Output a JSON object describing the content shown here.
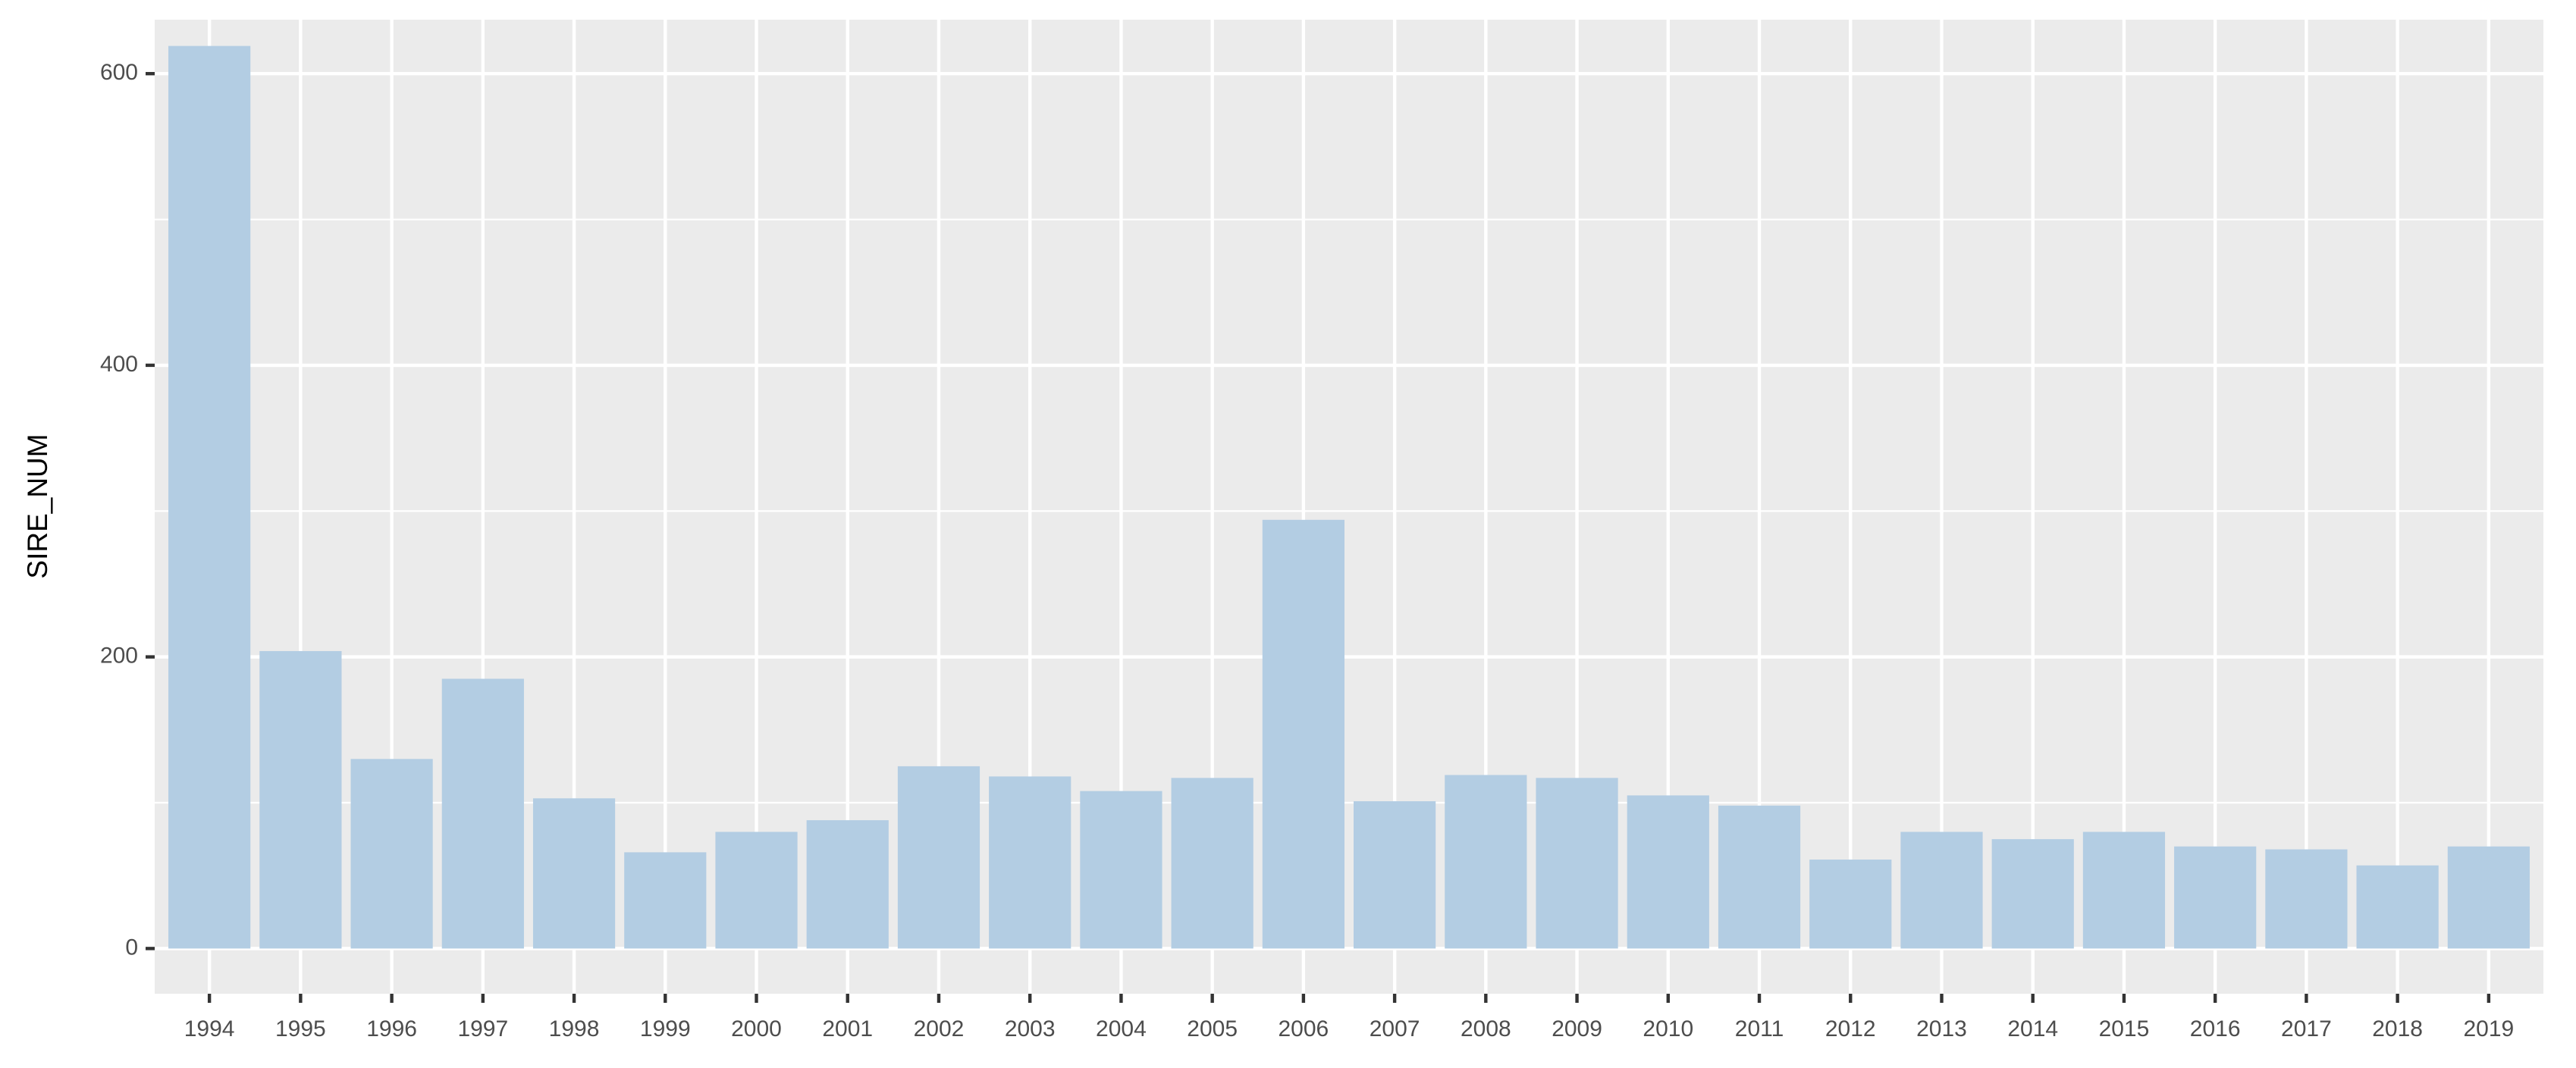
{
  "chart_data": {
    "type": "bar",
    "y_label": "SIRE_NUM",
    "categories": [
      "1994",
      "1995",
      "1996",
      "1997",
      "1998",
      "1999",
      "2000",
      "2001",
      "2002",
      "2003",
      "2004",
      "2005",
      "2006",
      "2007",
      "2008",
      "2009",
      "2010",
      "2011",
      "2012",
      "2013",
      "2014",
      "2015",
      "2016",
      "2017",
      "2018",
      "2019"
    ],
    "values": [
      619,
      204,
      130,
      185,
      103,
      66,
      80,
      88,
      125,
      118,
      108,
      117,
      294,
      101,
      119,
      117,
      105,
      98,
      61,
      80,
      75,
      80,
      70,
      68,
      57,
      70
    ],
    "color": "#b3cde3",
    "ylim": [
      -31,
      637
    ],
    "yticks": [
      0,
      200,
      400,
      600
    ],
    "y_minor_gridlines": [
      100,
      300,
      500
    ],
    "grid": true
  }
}
